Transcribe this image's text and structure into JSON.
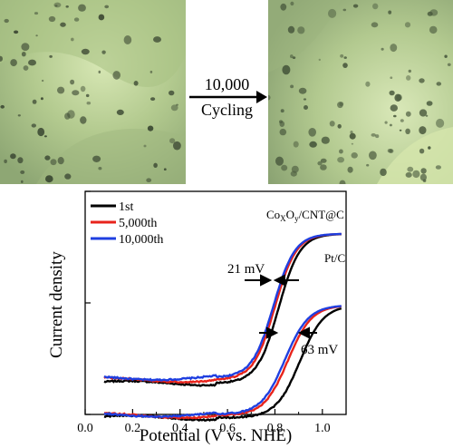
{
  "micrographs": {
    "left_label": "",
    "right_label": ""
  },
  "cycling": {
    "count_label": "10,000",
    "action_label": "Cycling"
  },
  "chart_data": {
    "type": "line",
    "xlabel": "Potential (V vs. NHE)",
    "ylabel": "Current density",
    "xlim": [
      0.0,
      1.1
    ],
    "x_ticks": [
      "0.0",
      "0.2",
      "0.4",
      "0.6",
      "0.8",
      "1.0"
    ],
    "y_ticks_labeled": false,
    "legend": {
      "placement": "top-left",
      "entries": [
        {
          "name": "1st",
          "color": "#000000"
        },
        {
          "name": "5,000th",
          "color": "#e8231b"
        },
        {
          "name": "10,000th",
          "color": "#1f3fe0"
        }
      ]
    },
    "annotations": {
      "coxoy_label": "Co<sub>X</sub>O<sub>y</sub>/CNT@C",
      "coxoy_text": "CoxOy/CNT@C",
      "ptc_text": "Pt/C",
      "shift_upper": "21 mV",
      "shift_lower": "63 mV"
    },
    "groups": [
      {
        "catalyst": "CoxOy/CNT@C",
        "series": [
          {
            "name": "1st",
            "color": "#000000",
            "base": 0.14,
            "top": 0.81,
            "e_half": 0.815,
            "width": 0.045
          },
          {
            "name": "5,000th",
            "color": "#e8231b",
            "base": 0.155,
            "top": 0.81,
            "e_half": 0.8,
            "width": 0.045
          },
          {
            "name": "10,000th",
            "color": "#1f3fe0",
            "base": 0.165,
            "top": 0.81,
            "e_half": 0.794,
            "width": 0.045
          }
        ]
      },
      {
        "catalyst": "Pt/C",
        "series": [
          {
            "name": "1st",
            "color": "#000000",
            "base": -0.015,
            "top": 0.49,
            "e_half": 0.905,
            "width": 0.05
          },
          {
            "name": "5,000th",
            "color": "#e8231b",
            "base": -0.005,
            "top": 0.49,
            "e_half": 0.855,
            "width": 0.05
          },
          {
            "name": "10,000th",
            "color": "#1f3fe0",
            "base": 0.0,
            "top": 0.49,
            "e_half": 0.842,
            "width": 0.05
          }
        ]
      }
    ],
    "x_range_data": [
      0.08,
      1.08
    ]
  },
  "colors": {
    "micrograph_base": "#b9cf97",
    "micrograph_dark": "#6f8a55",
    "particle": "#3d4a34"
  }
}
